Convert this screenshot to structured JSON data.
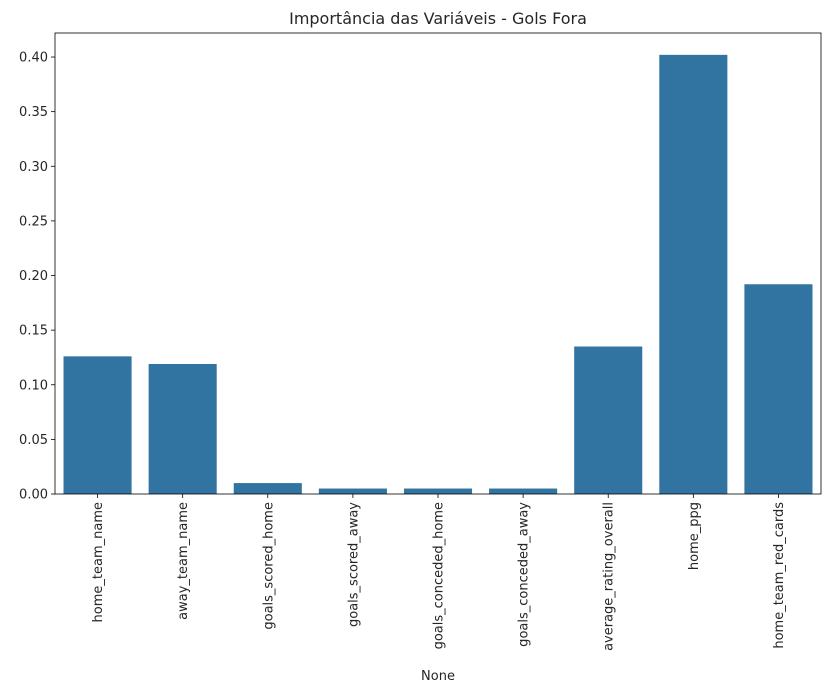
{
  "chart_data": {
    "type": "bar",
    "title": "Importância das Variáveis - Gols Fora",
    "xlabel": "None",
    "ylabel": "",
    "categories": [
      "home_team_name",
      "away_team_name",
      "goals_scored_home",
      "goals_scored_away",
      "goals_conceded_home",
      "goals_conceded_away",
      "average_rating_overall",
      "home_ppg",
      "home_team_red_cards"
    ],
    "values": [
      0.126,
      0.119,
      0.01,
      0.005,
      0.005,
      0.005,
      0.135,
      0.402,
      0.192
    ],
    "ylim": [
      0,
      0.422
    ],
    "yticks": [
      0.0,
      0.05,
      0.1,
      0.15,
      0.2,
      0.25,
      0.3,
      0.35,
      0.4
    ],
    "ytick_labels": [
      "0.00",
      "0.05",
      "0.10",
      "0.15",
      "0.20",
      "0.25",
      "0.30",
      "0.35",
      "0.40"
    ],
    "bar_color": "#3274a1",
    "grid": false,
    "legend": "none"
  }
}
